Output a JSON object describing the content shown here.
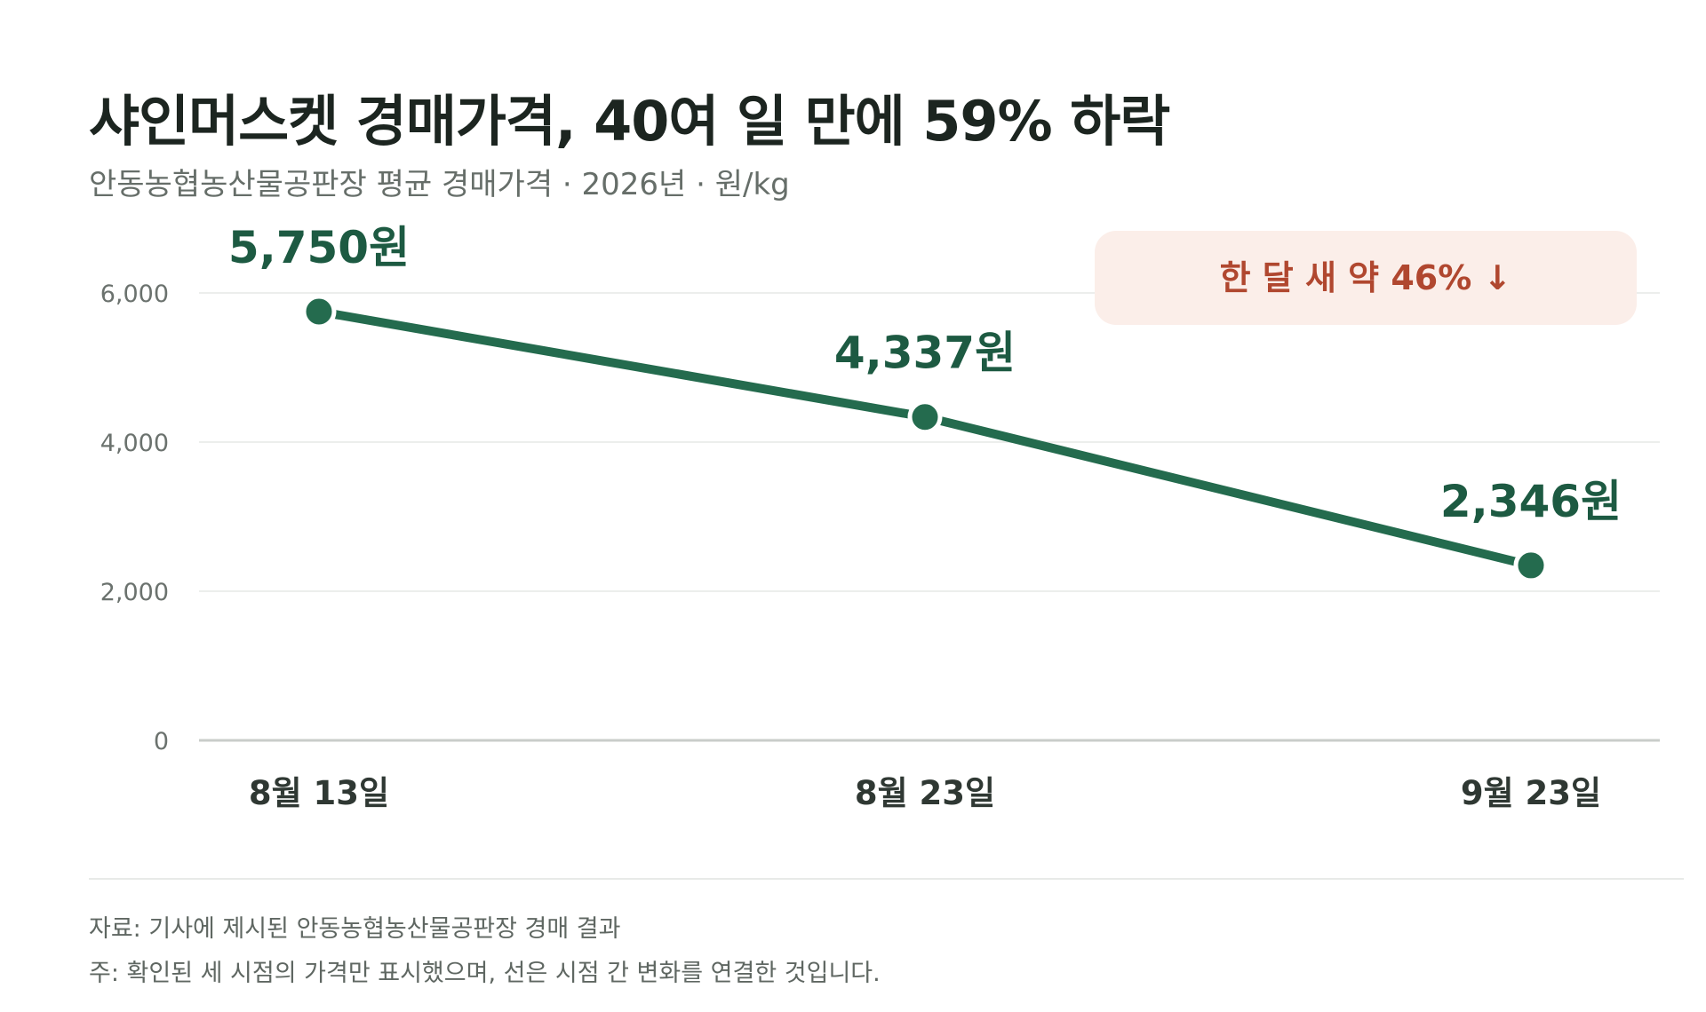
{
  "header": {
    "title": "샤인머스켓 경매가격, 40여 일 만에 59% 하락",
    "subtitle": "안동농협농산물공판장 평균 경매가격 · 2026년 · 원/kg"
  },
  "chart_data": {
    "type": "line",
    "categories": [
      "8월 13일",
      "8월 23일",
      "9월 23일"
    ],
    "values": [
      5750,
      4337,
      2346
    ],
    "data_labels": [
      "5,750원",
      "4,337원",
      "2,346원"
    ],
    "yticks": [
      0,
      2000,
      4000,
      6000
    ],
    "ytick_labels": [
      "0",
      "2,000",
      "4,000",
      "6,000"
    ],
    "ylim": [
      0,
      6000
    ],
    "grid": true,
    "legend": "none",
    "line_color": "#246b4e",
    "annotation": {
      "text": "한 달 새 약 46% ↓",
      "placement": "top-right",
      "text_color": "#b0472f",
      "background": "#fbeee9"
    }
  },
  "footer": {
    "source": "자료: 기사에 제시된 안동농협농산물공판장 경매 결과",
    "note": "주: 확인된 세 시점의 가격만 표시했으며, 선은 시점 간 변화를 연결한 것입니다."
  }
}
